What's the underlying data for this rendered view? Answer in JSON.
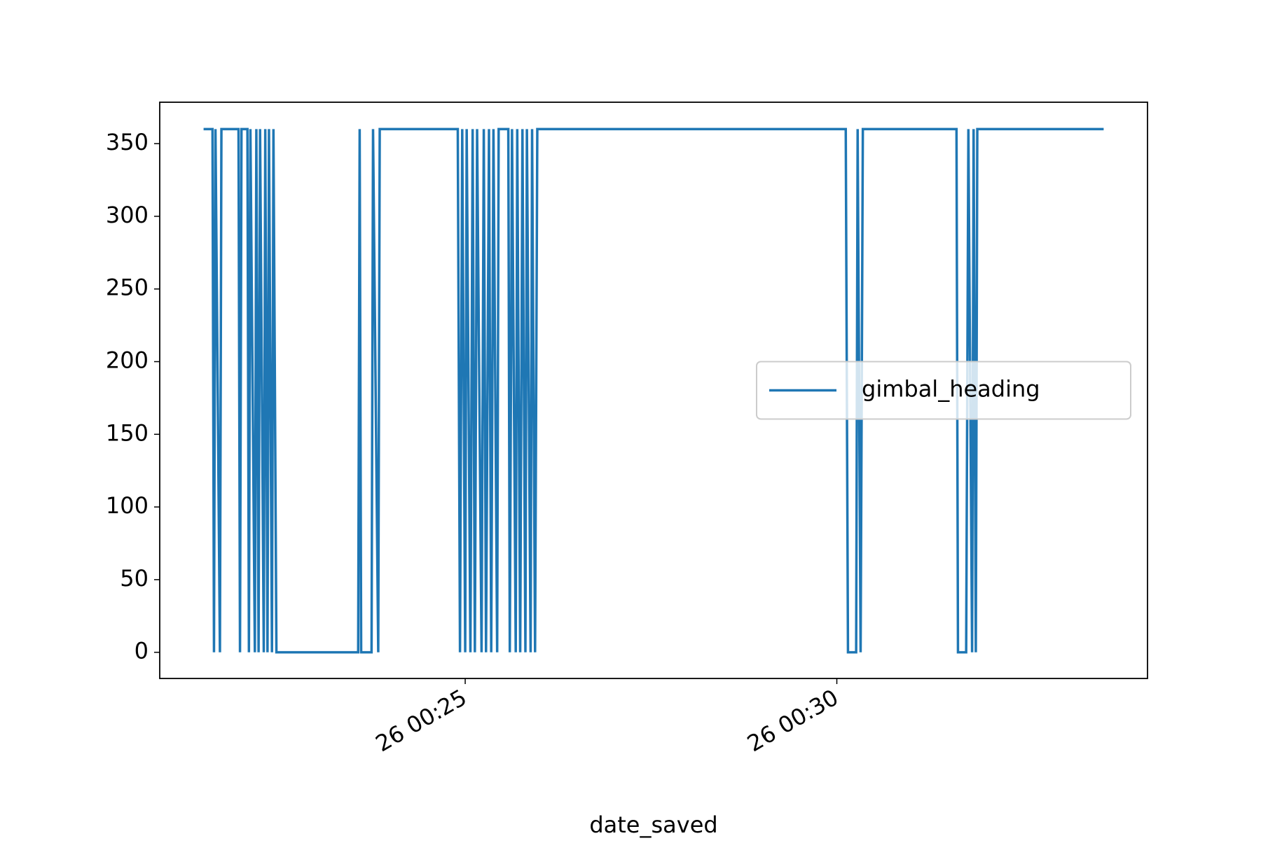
{
  "chart_data": {
    "type": "line",
    "xlabel": "date_saved",
    "x": [
      21.48,
      21.6,
      21.62,
      21.64,
      21.7,
      21.72,
      21.95,
      21.97,
      21.99,
      22.07,
      22.09,
      22.11,
      22.17,
      22.19,
      22.22,
      22.24,
      22.29,
      22.31,
      22.34,
      22.36,
      22.4,
      22.42,
      22.46,
      23.56,
      23.58,
      23.6,
      23.74,
      23.76,
      23.83,
      23.85,
      24.9,
      24.93,
      24.96,
      25.0,
      25.02,
      25.07,
      25.1,
      25.13,
      25.16,
      25.22,
      25.25,
      25.28,
      25.32,
      25.35,
      25.38,
      25.43,
      25.45,
      25.58,
      25.6,
      25.63,
      25.68,
      25.7,
      25.74,
      25.77,
      25.81,
      25.83,
      25.88,
      25.9,
      25.94,
      25.97,
      30.12,
      30.15,
      30.26,
      30.28,
      30.32,
      30.35,
      31.61,
      31.63,
      31.74,
      31.77,
      31.82,
      31.84,
      31.87,
      31.89,
      33.59
    ],
    "series": [
      {
        "name": "gimbal_heading",
        "color": "#1f77b4",
        "values": [
          360,
          360,
          0,
          360,
          0,
          360,
          360,
          0,
          360,
          360,
          0,
          360,
          0,
          360,
          0,
          360,
          0,
          360,
          0,
          360,
          0,
          360,
          0,
          0,
          360,
          0,
          0,
          360,
          0,
          360,
          360,
          0,
          360,
          0,
          360,
          0,
          360,
          0,
          360,
          0,
          360,
          0,
          360,
          0,
          360,
          0,
          360,
          360,
          0,
          360,
          0,
          360,
          0,
          360,
          0,
          360,
          0,
          360,
          0,
          360,
          360,
          0,
          0,
          360,
          0,
          360,
          360,
          0,
          0,
          360,
          0,
          360,
          0,
          360,
          360
        ]
      }
    ],
    "xlim": [
      20.89,
      34.18
    ],
    "xticks": [
      {
        "value": 25,
        "label": "26 00:25"
      },
      {
        "value": 30,
        "label": "26 00:30"
      }
    ],
    "ylim": [
      -18,
      378.5
    ],
    "yticks": [
      0,
      50,
      100,
      150,
      200,
      250,
      300,
      350
    ],
    "legend": "center right"
  }
}
